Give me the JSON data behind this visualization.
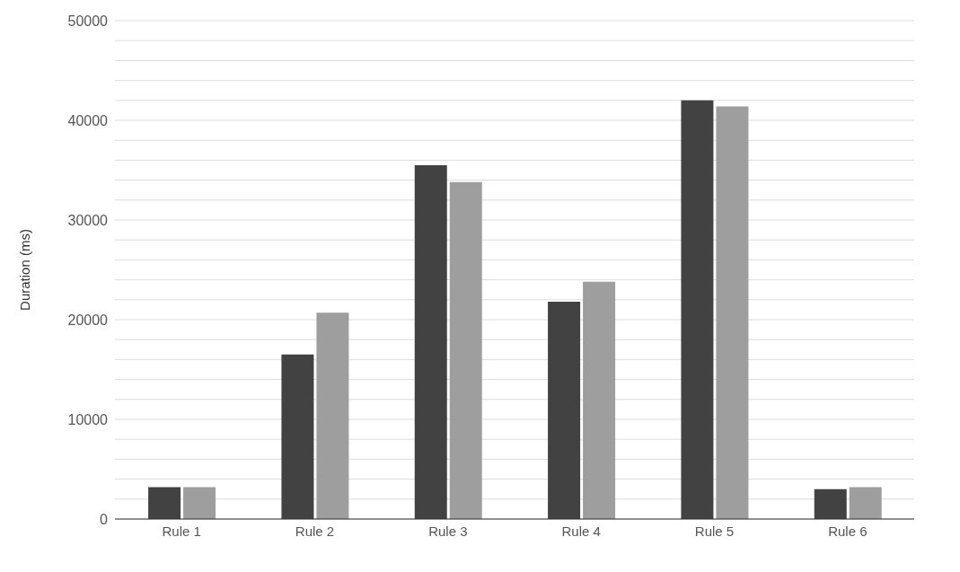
{
  "chart_data": {
    "type": "bar",
    "ylabel": "Duration (ms)",
    "categories": [
      "Rule 1",
      "Rule 2",
      "Rule 3",
      "Rule 4",
      "Rule 5",
      "Rule 6"
    ],
    "series": [
      {
        "color": "#424242",
        "values": [
          3200,
          16500,
          35500,
          21800,
          42000,
          3000
        ]
      },
      {
        "color": "#9e9e9e",
        "values": [
          3200,
          20700,
          33800,
          23800,
          41400,
          3200
        ]
      }
    ],
    "ylim": [
      0,
      50000
    ],
    "yticks": [
      0,
      {
        "value": 2000,
        "label": null
      },
      {
        "value": 4000,
        "label": null
      },
      {
        "value": 6000,
        "label": null
      },
      {
        "value": 8000,
        "label": null
      },
      10000,
      {
        "value": 12000,
        "label": null
      },
      {
        "value": 14000,
        "label": null
      },
      {
        "value": 16000,
        "label": null
      },
      {
        "value": 18000,
        "label": null
      },
      20000,
      {
        "value": 22000,
        "label": null
      },
      {
        "value": 24000,
        "label": null
      },
      {
        "value": 26000,
        "label": null
      },
      {
        "value": 28000,
        "label": null
      },
      30000,
      {
        "value": 32000,
        "label": null
      },
      {
        "value": 34000,
        "label": null
      },
      {
        "value": 36000,
        "label": null
      },
      {
        "value": 38000,
        "label": null
      },
      40000,
      {
        "value": 42000,
        "label": null
      },
      {
        "value": 44000,
        "label": null
      },
      {
        "value": 46000,
        "label": null
      },
      {
        "value": 48000,
        "label": null
      },
      50000
    ],
    "grid": "y"
  }
}
